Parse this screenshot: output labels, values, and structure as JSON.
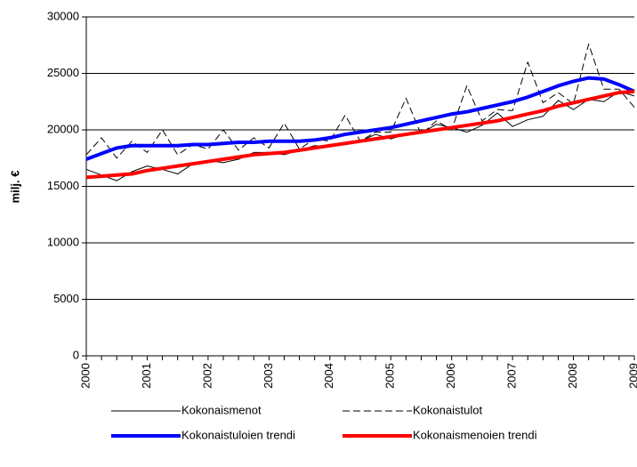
{
  "chart_data": {
    "type": "line",
    "y_label": "milj. €",
    "categories": [
      "2000",
      null,
      null,
      null,
      "2001",
      null,
      null,
      null,
      "2002",
      null,
      null,
      null,
      "2003",
      null,
      null,
      null,
      "2004",
      null,
      null,
      null,
      "2005",
      null,
      null,
      null,
      "2006",
      null,
      null,
      null,
      "2007",
      null,
      null,
      null,
      "2008",
      null,
      null,
      null,
      "2009"
    ],
    "series": [
      {
        "name": "Kokonaismenot",
        "color": "#000000",
        "style": "solid",
        "width": 1,
        "values": [
          16500,
          16000,
          15500,
          16300,
          16800,
          16500,
          16100,
          17000,
          17300,
          17100,
          17400,
          18000,
          18000,
          17800,
          18200,
          18600,
          18500,
          18800,
          19000,
          19600,
          19200,
          19600,
          19700,
          20500,
          20200,
          19800,
          20400,
          21500,
          20300,
          20900,
          21200,
          22600,
          21800,
          22700,
          22500,
          23400,
          23000
        ]
      },
      {
        "name": "Kokonaistulot",
        "color": "#000000",
        "style": "dashed",
        "width": 1,
        "values": [
          17800,
          19300,
          17500,
          19000,
          18000,
          20000,
          17800,
          18700,
          18300,
          20000,
          18200,
          19300,
          18400,
          20600,
          18300,
          19200,
          19000,
          21300,
          19000,
          19800,
          19800,
          22800,
          19600,
          20800,
          20000,
          23900,
          20800,
          21800,
          21700,
          26000,
          22400,
          23300,
          22300,
          27600,
          23600,
          23600,
          22000
        ]
      },
      {
        "name": "Kokonaistuloien trendi",
        "color": "#0000ff",
        "style": "solid",
        "width": 4,
        "values": [
          17400,
          17900,
          18400,
          18600,
          18600,
          18600,
          18600,
          18700,
          18700,
          18800,
          18900,
          18900,
          19000,
          19000,
          19000,
          19100,
          19300,
          19600,
          19800,
          20000,
          20200,
          20500,
          20800,
          21100,
          21400,
          21600,
          21900,
          22200,
          22500,
          22900,
          23400,
          23900,
          24300,
          24600,
          24500,
          24000,
          23400
        ]
      },
      {
        "name": "Kokonaismenoien trendi",
        "color": "#ff0000",
        "style": "solid",
        "width": 4,
        "values": [
          15800,
          15900,
          16000,
          16100,
          16400,
          16600,
          16800,
          17000,
          17200,
          17400,
          17600,
          17800,
          17900,
          18000,
          18200,
          18400,
          18600,
          18800,
          19000,
          19200,
          19400,
          19600,
          19800,
          20000,
          20200,
          20400,
          20600,
          20800,
          21100,
          21400,
          21700,
          22100,
          22400,
          22700,
          23000,
          23300,
          23400
        ]
      }
    ],
    "ylim": [
      0,
      30000
    ],
    "yticks": [
      0,
      5000,
      10000,
      15000,
      20000,
      25000,
      30000
    ],
    "grid": true
  }
}
